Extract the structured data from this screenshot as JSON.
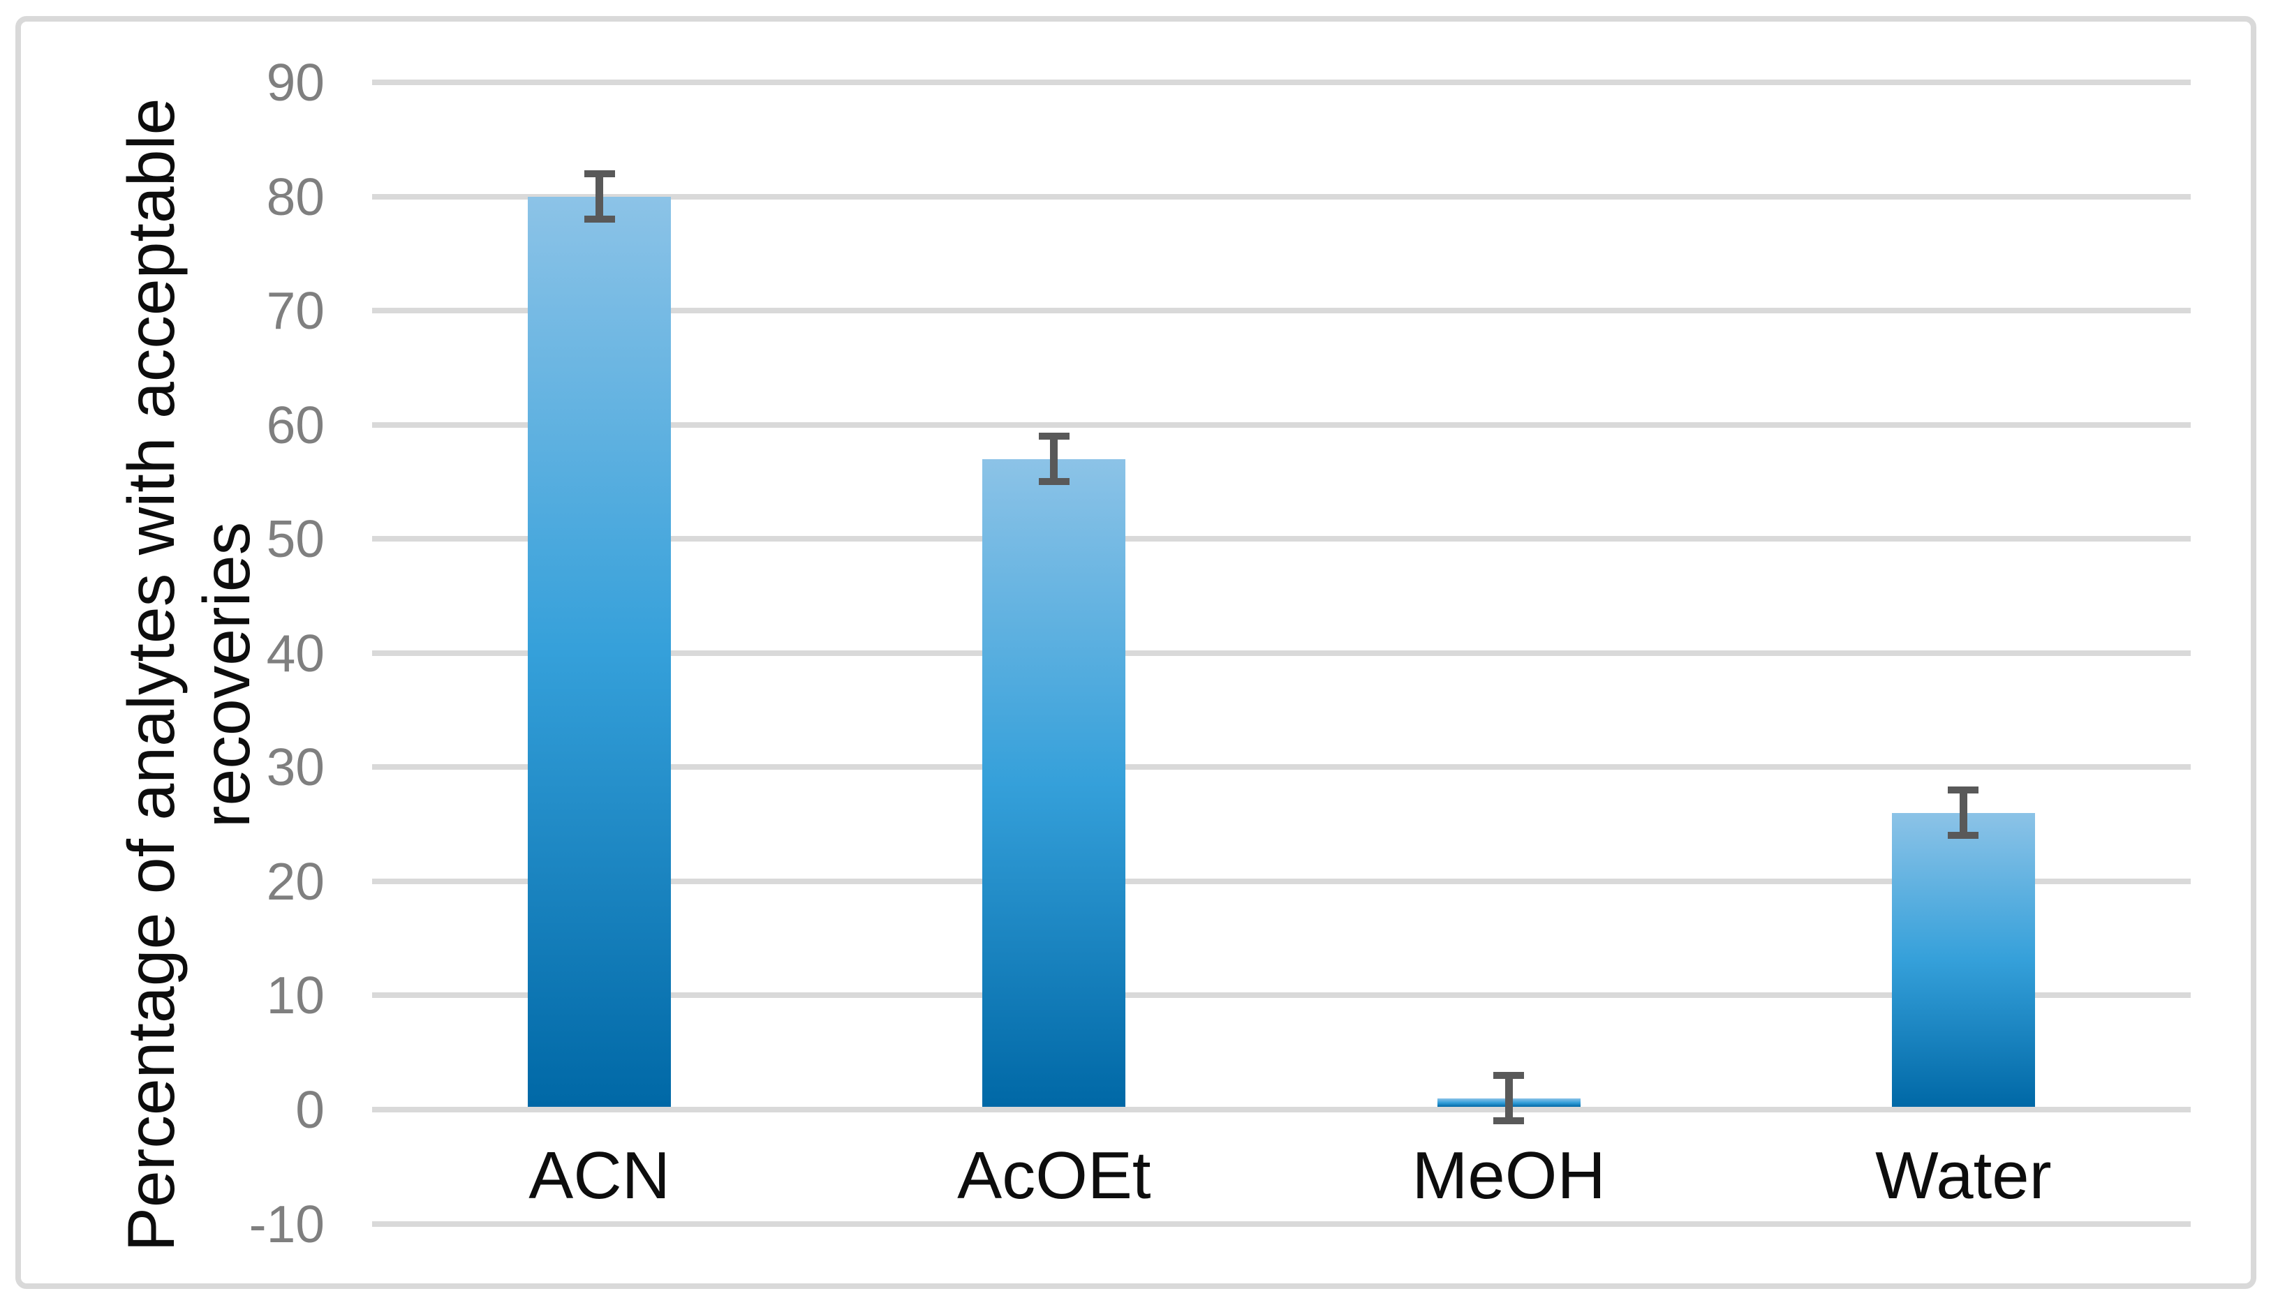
{
  "chart_data": {
    "type": "bar",
    "title": "",
    "categories": [
      "ACN",
      "AcOEt",
      "MeOH",
      "Water"
    ],
    "values": [
      80,
      57,
      1,
      26
    ],
    "error_bars": [
      2,
      2,
      2,
      2
    ],
    "ylabel_line1": "Percentage of analytes with acceptable",
    "ylabel_line2": "recoveries",
    "ylabel": "Percentage of analytes with acceptable recoveries",
    "xlabel": "",
    "ylim": [
      -10,
      90
    ],
    "yticks": [
      90,
      80,
      70,
      60,
      50,
      40,
      30,
      20,
      10,
      0,
      -10
    ],
    "grid": "horizontal-only",
    "legend": "none",
    "colors": {
      "bar_gradient_top": "#8cc3e7",
      "bar_gradient_mid": "#35a0da",
      "bar_gradient_bottom": "#0068a6",
      "error_bar": "#595959",
      "gridline": "#d9d9d9",
      "frame_border": "#d9d9d9",
      "tick_label": "#7f7f7f",
      "category_label": "#0d0d0d",
      "axis_title": "#0d0d0d",
      "background": "#ffffff"
    }
  }
}
